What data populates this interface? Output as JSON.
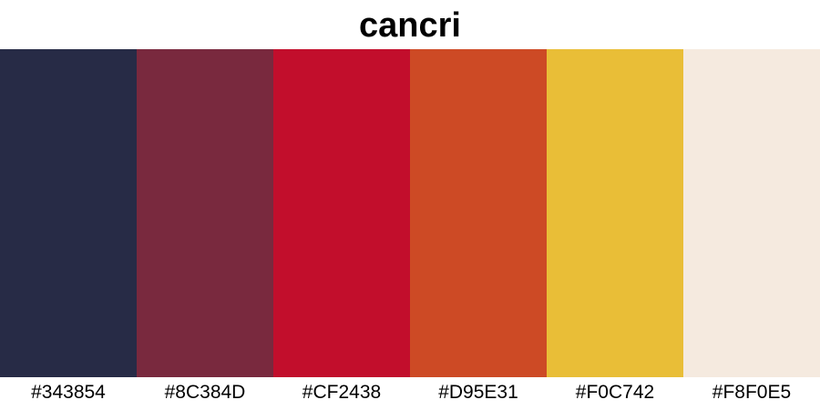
{
  "title": "cancri",
  "palette": [
    {
      "label": "#343854",
      "color": "#272B46"
    },
    {
      "label": "#8C384D",
      "color": "#79293E"
    },
    {
      "label": "#CF2438",
      "color": "#C20E2C"
    },
    {
      "label": "#D95E31",
      "color": "#CD4A25"
    },
    {
      "label": "#F0C742",
      "color": "#E9BE37"
    },
    {
      "label": "#F8F0E5",
      "color": "#F5EADF"
    }
  ]
}
